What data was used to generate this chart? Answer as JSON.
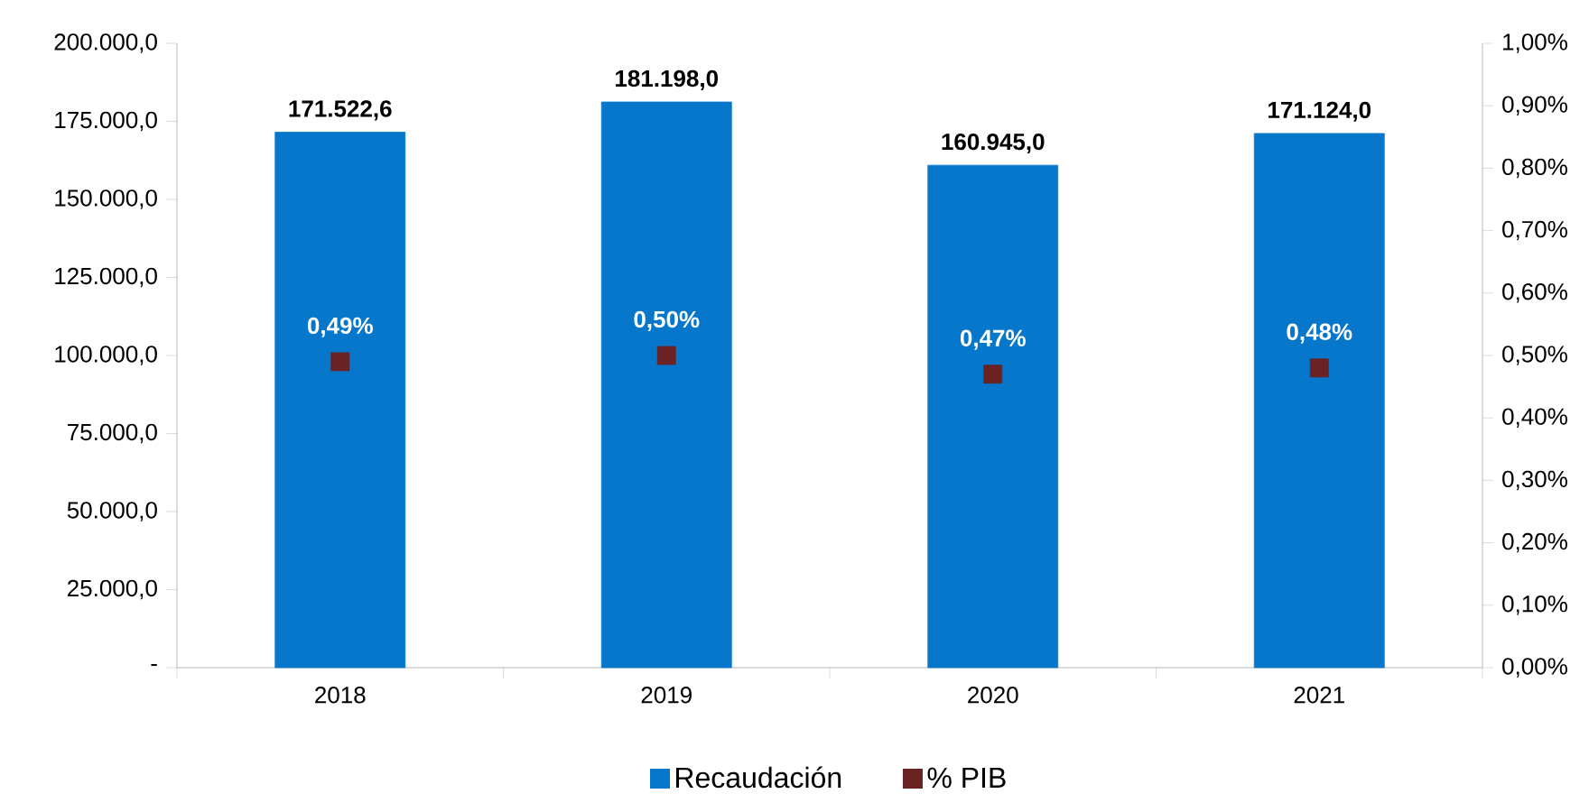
{
  "chart_data": {
    "type": "bar",
    "categories": [
      "2018",
      "2019",
      "2020",
      "2021"
    ],
    "series": [
      {
        "name": "Recaudación",
        "color": "#0777cc",
        "values": [
          171522.6,
          181198.0,
          160945.0,
          171124.0
        ],
        "value_labels": [
          "171.522,6",
          "181.198,0",
          "160.945,0",
          "171.124,0"
        ]
      },
      {
        "name": "% PIB",
        "type": "scatter",
        "axis": "y2",
        "color": "#6b2222",
        "values": [
          0.49,
          0.5,
          0.47,
          0.48
        ],
        "value_labels": [
          "0,49%",
          "0,50%",
          "0,47%",
          "0,48%"
        ]
      }
    ],
    "ylim": [
      0,
      200000
    ],
    "yticks": [
      {
        "value": 0,
        "label": "-"
      },
      {
        "value": 25000,
        "label": "25.000,0"
      },
      {
        "value": 50000,
        "label": "50.000,0"
      },
      {
        "value": 75000,
        "label": "75.000,0"
      },
      {
        "value": 100000,
        "label": "100.000,0"
      },
      {
        "value": 125000,
        "label": "125.000,0"
      },
      {
        "value": 150000,
        "label": "150.000,0"
      },
      {
        "value": 175000,
        "label": "175.000,0"
      },
      {
        "value": 200000,
        "label": "200.000,0"
      }
    ],
    "y2lim": [
      0,
      1.0
    ],
    "y2ticks": [
      {
        "value": 0,
        "label": "0,00%"
      },
      {
        "value": 0.1,
        "label": "0,10%"
      },
      {
        "value": 0.2,
        "label": "0,20%"
      },
      {
        "value": 0.3,
        "label": "0,30%"
      },
      {
        "value": 0.4,
        "label": "0,40%"
      },
      {
        "value": 0.5,
        "label": "0,50%"
      },
      {
        "value": 0.6,
        "label": "0,60%"
      },
      {
        "value": 0.7,
        "label": "0,70%"
      },
      {
        "value": 0.8,
        "label": "0,80%"
      },
      {
        "value": 0.9,
        "label": "0,90%"
      },
      {
        "value": 1.0,
        "label": "1,00%"
      }
    ],
    "marker": "square",
    "legend": "bottom",
    "grid": false
  }
}
